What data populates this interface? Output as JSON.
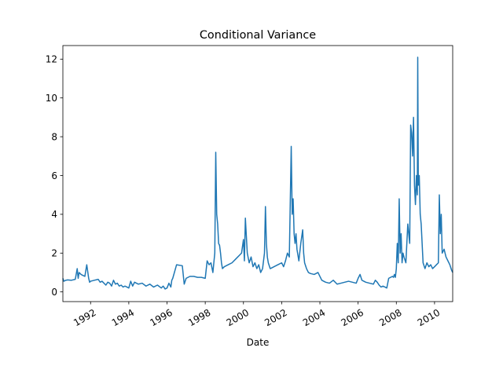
{
  "chart_data": {
    "type": "line",
    "title": "Conditional Variance",
    "xlabel": "Date",
    "ylabel": "",
    "xlim": [
      1990.55,
      2010.95
    ],
    "ylim": [
      -0.5,
      12.7
    ],
    "line_color": "#1f77b4",
    "x_ticks": [
      {
        "value": 1992,
        "label": "1992"
      },
      {
        "value": 1994,
        "label": "1994"
      },
      {
        "value": 1996,
        "label": "1996"
      },
      {
        "value": 1998,
        "label": "1998"
      },
      {
        "value": 2000,
        "label": "2000"
      },
      {
        "value": 2002,
        "label": "2002"
      },
      {
        "value": 2004,
        "label": "2004"
      },
      {
        "value": 2006,
        "label": "2006"
      },
      {
        "value": 2008,
        "label": "2008"
      },
      {
        "value": 2010,
        "label": "2010"
      }
    ],
    "y_ticks": [
      {
        "value": 0,
        "label": "0"
      },
      {
        "value": 2,
        "label": "2"
      },
      {
        "value": 4,
        "label": "4"
      },
      {
        "value": 6,
        "label": "6"
      },
      {
        "value": 8,
        "label": "8"
      },
      {
        "value": 10,
        "label": "10"
      },
      {
        "value": 12,
        "label": "12"
      }
    ],
    "series": [
      {
        "name": "Conditional Variance",
        "x": [
          1990.55,
          1990.6,
          1990.7,
          1990.8,
          1991.0,
          1991.2,
          1991.3,
          1991.35,
          1991.4,
          1991.5,
          1991.6,
          1991.7,
          1991.8,
          1991.9,
          1991.95,
          1992.0,
          1992.2,
          1992.4,
          1992.5,
          1992.6,
          1992.8,
          1992.9,
          1993.0,
          1993.1,
          1993.2,
          1993.3,
          1993.4,
          1993.5,
          1993.6,
          1993.7,
          1993.8,
          1993.9,
          1994.0,
          1994.1,
          1994.2,
          1994.3,
          1994.5,
          1994.7,
          1994.9,
          1995.1,
          1995.3,
          1995.5,
          1995.7,
          1995.8,
          1995.9,
          1996.0,
          1996.1,
          1996.2,
          1996.25,
          1996.3,
          1996.5,
          1996.8,
          1996.9,
          1997.0,
          1997.2,
          1997.4,
          1997.6,
          1997.8,
          1998.0,
          1998.1,
          1998.2,
          1998.3,
          1998.4,
          1998.5,
          1998.55,
          1998.6,
          1998.65,
          1998.7,
          1998.75,
          1998.8,
          1998.85,
          1998.9,
          1999.0,
          1999.2,
          1999.4,
          1999.6,
          1999.8,
          1999.9,
          2000.0,
          2000.05,
          2000.1,
          2000.2,
          2000.3,
          2000.4,
          2000.5,
          2000.6,
          2000.7,
          2000.8,
          2000.9,
          2001.0,
          2001.1,
          2001.15,
          2001.2,
          2001.25,
          2001.3,
          2001.4,
          2001.6,
          2001.8,
          2002.0,
          2002.1,
          2002.2,
          2002.3,
          2002.4,
          2002.5,
          2002.55,
          2002.6,
          2002.65,
          2002.7,
          2002.75,
          2002.8,
          2002.9,
          2003.0,
          2003.1,
          2003.15,
          2003.2,
          2003.3,
          2003.4,
          2003.5,
          2003.7,
          2003.9,
          2004.1,
          2004.3,
          2004.5,
          2004.7,
          2004.9,
          2005.1,
          2005.3,
          2005.5,
          2005.7,
          2005.9,
          2006.0,
          2006.1,
          2006.2,
          2006.4,
          2006.6,
          2006.8,
          2006.9,
          2007.0,
          2007.1,
          2007.2,
          2007.3,
          2007.4,
          2007.5,
          2007.6,
          2007.7,
          2007.8,
          2007.85,
          2007.9,
          2007.95,
          2008.0,
          2008.05,
          2008.1,
          2008.15,
          2008.2,
          2008.25,
          2008.3,
          2008.35,
          2008.4,
          2008.5,
          2008.6,
          2008.7,
          2008.75,
          2008.8,
          2008.85,
          2008.9,
          2008.95,
          2009.0,
          2009.05,
          2009.1,
          2009.12,
          2009.15,
          2009.2,
          2009.25,
          2009.3,
          2009.35,
          2009.4,
          2009.5,
          2009.6,
          2009.7,
          2009.8,
          2009.9,
          2010.0,
          2010.1,
          2010.2,
          2010.25,
          2010.3,
          2010.35,
          2010.4,
          2010.5,
          2010.6,
          2010.7,
          2010.8,
          2010.9,
          2010.95
        ],
        "y": [
          0.7,
          0.55,
          0.6,
          0.62,
          0.6,
          0.65,
          1.2,
          0.7,
          1.0,
          0.9,
          0.85,
          0.8,
          1.4,
          0.7,
          0.5,
          0.55,
          0.6,
          0.65,
          0.5,
          0.55,
          0.35,
          0.5,
          0.45,
          0.3,
          0.6,
          0.4,
          0.45,
          0.3,
          0.35,
          0.25,
          0.3,
          0.25,
          0.2,
          0.55,
          0.3,
          0.5,
          0.4,
          0.45,
          0.3,
          0.4,
          0.25,
          0.35,
          0.2,
          0.3,
          0.15,
          0.2,
          0.45,
          0.25,
          0.6,
          0.7,
          1.4,
          1.35,
          0.4,
          0.7,
          0.8,
          0.8,
          0.75,
          0.75,
          0.7,
          1.6,
          1.4,
          1.5,
          1.0,
          2.0,
          7.2,
          4.0,
          3.5,
          2.5,
          2.4,
          2.0,
          1.5,
          1.2,
          1.3,
          1.4,
          1.5,
          1.7,
          1.9,
          2.0,
          2.7,
          1.6,
          3.8,
          2.0,
          1.5,
          1.8,
          1.3,
          1.5,
          1.2,
          1.4,
          1.0,
          1.2,
          2.0,
          4.4,
          2.5,
          1.8,
          1.5,
          1.2,
          1.3,
          1.4,
          1.5,
          1.3,
          1.6,
          2.0,
          1.8,
          7.5,
          4.0,
          4.8,
          3.0,
          2.5,
          3.0,
          2.2,
          1.6,
          2.5,
          3.2,
          2.0,
          1.5,
          1.2,
          1.0,
          0.95,
          0.9,
          1.0,
          0.6,
          0.5,
          0.45,
          0.6,
          0.4,
          0.45,
          0.5,
          0.55,
          0.5,
          0.45,
          0.7,
          0.9,
          0.6,
          0.5,
          0.45,
          0.4,
          0.6,
          0.5,
          0.35,
          0.25,
          0.3,
          0.25,
          0.2,
          0.7,
          0.75,
          0.8,
          0.75,
          0.9,
          0.75,
          1.2,
          2.5,
          1.5,
          4.8,
          2.0,
          3.0,
          1.5,
          2.0,
          1.8,
          1.5,
          3.5,
          2.5,
          8.6,
          8.2,
          7.0,
          9.0,
          5.5,
          4.5,
          6.0,
          5.0,
          12.1,
          5.5,
          6.0,
          4.0,
          3.5,
          2.5,
          1.5,
          1.2,
          1.5,
          1.3,
          1.4,
          1.2,
          1.3,
          1.4,
          1.5,
          5.0,
          3.0,
          4.0,
          2.0,
          2.2,
          1.8,
          1.6,
          1.4,
          1.1,
          1.0
        ]
      }
    ]
  }
}
